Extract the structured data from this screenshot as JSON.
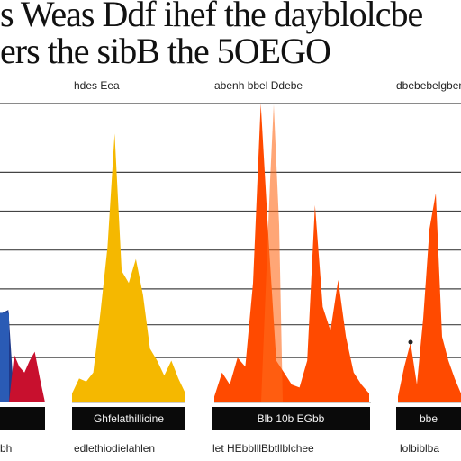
{
  "title": {
    "line1": "s Weas Ddf ihef the dayblolcbe",
    "line2": "ers the sibB the 5OEGO"
  },
  "panels": [
    {
      "header": "hdes Eea",
      "box_label": "",
      "bottom_label": "bh"
    },
    {
      "header": "",
      "box_label": "Ghfelathillicine",
      "bottom_label": "edlethiodielahlen"
    },
    {
      "header": "abenh bbel Ddebe",
      "box_label": "Blb 10b EGbb",
      "bottom_label": "let HEbblllBbtllblchee"
    },
    {
      "header": "dbebebelgbeneb",
      "box_label": "bbe",
      "bottom_label": "lolbiblba"
    }
  ],
  "colors": {
    "navy": "#1f3a8a",
    "blue": "#2a5bb5",
    "red": "#c8102e",
    "yellow": "#f5b800",
    "orange": "#ff4a00",
    "orange_light": "#ff6a1a",
    "grid": "#444444"
  },
  "chart_data": {
    "type": "area",
    "title": "s Weas Ddf ihef the dayblolcbe ers the sibB the 5OEGO",
    "xlabel": "",
    "ylabel": "",
    "ylim": [
      0,
      100
    ],
    "grid": true,
    "gridlines": [
      15,
      26,
      38,
      51,
      64,
      77,
      100
    ],
    "panels": [
      {
        "series": [
          {
            "color": "#1f3a8a",
            "x": [
              0,
              1,
              2,
              3
            ],
            "values": [
              28,
              30,
              31,
              0
            ]
          },
          {
            "color": "#c8102e",
            "x": [
              2,
              3,
              4,
              5,
              6,
              7,
              8,
              9
            ],
            "values": [
              0,
              16,
              12,
              10,
              14,
              17,
              8,
              0
            ]
          }
        ]
      },
      {
        "series": [
          {
            "color": "#f5b800",
            "x": [
              0,
              1,
              2,
              3,
              4,
              5,
              6,
              7,
              8,
              9,
              10,
              11,
              12,
              13,
              14,
              15,
              16
            ],
            "values": [
              3,
              8,
              7,
              10,
              30,
              52,
              90,
              44,
              40,
              48,
              36,
              18,
              14,
              9,
              14,
              8,
              3
            ]
          }
        ]
      },
      {
        "series": [
          {
            "color": "#ff4a00",
            "x": [
              0,
              1,
              2,
              3,
              4,
              5,
              6,
              7,
              8,
              9,
              10,
              11,
              12,
              13,
              14,
              15,
              16,
              17,
              18,
              19,
              20
            ],
            "values": [
              2,
              10,
              6,
              15,
              12,
              40,
              100,
              55,
              14,
              10,
              6,
              5,
              14,
              66,
              32,
              24,
              41,
              22,
              10,
              6,
              3
            ]
          }
        ]
      },
      {
        "series": [
          {
            "color": "#ff4a00",
            "x": [
              0,
              1,
              2,
              3,
              4,
              5,
              6,
              7,
              8,
              9,
              10
            ],
            "values": [
              2,
              12,
              20,
              6,
              28,
              58,
              70,
              22,
              14,
              8,
              3
            ]
          }
        ]
      }
    ]
  }
}
